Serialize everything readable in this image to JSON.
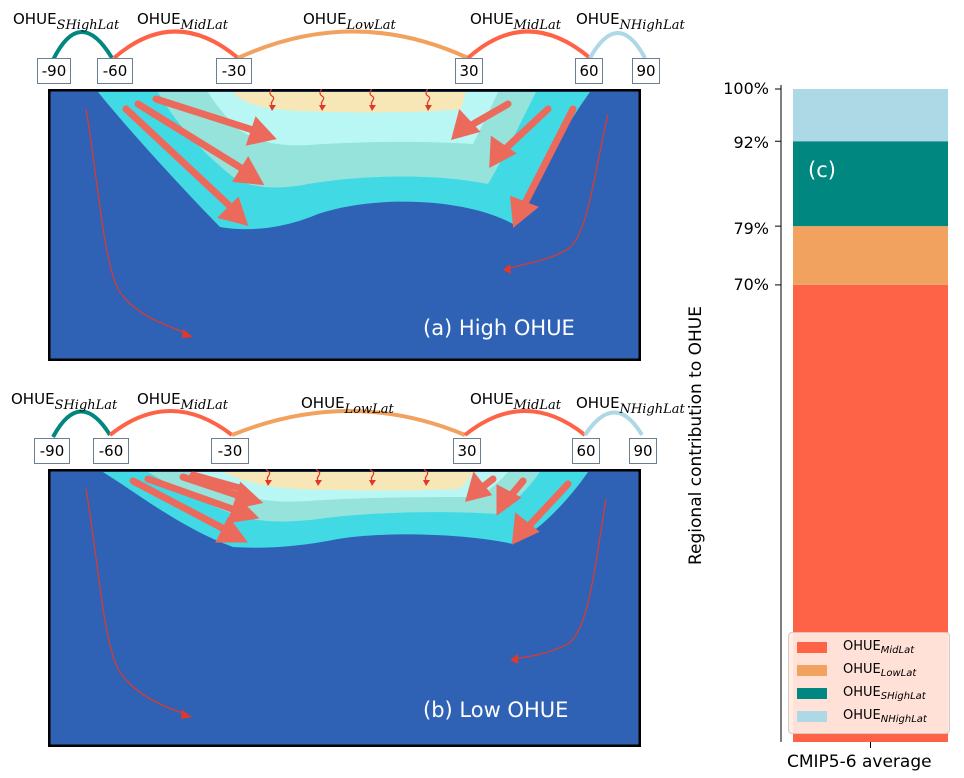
{
  "panel_a": {
    "arcs": {
      "shigh": {
        "base": "OHUE",
        "sub": "SHighLat"
      },
      "mid_left": {
        "base": "OHUE",
        "sub": "MidLat"
      },
      "low": {
        "base": "OHUE",
        "sub": "LowLat"
      },
      "mid_right": {
        "base": "OHUE",
        "sub": "MidLat"
      },
      "nhigh": {
        "base": "OHUE",
        "sub": "NHighLat"
      }
    },
    "latitudes": [
      "-90",
      "-60",
      "-30",
      "30",
      "60",
      "90"
    ],
    "label": "(a) High OHUE"
  },
  "panel_b": {
    "arcs": {
      "shigh": {
        "base": "OHUE",
        "sub": "SHighLat"
      },
      "mid_left": {
        "base": "OHUE",
        "sub": "MidLat"
      },
      "low": {
        "base": "OHUE",
        "sub": "LowLat"
      },
      "mid_right": {
        "base": "OHUE",
        "sub": "MidLat"
      },
      "nhigh": {
        "base": "OHUE",
        "sub": "NHighLat"
      }
    },
    "latitudes": [
      "-90",
      "-60",
      "-30",
      "30",
      "60",
      "90"
    ],
    "label": "(b) Low OHUE"
  },
  "colors": {
    "ocean": "#2f62b5",
    "layer_outer": "#41d9e4",
    "layer_mid": "#95e3db",
    "layer_inner": "#b9f7f5",
    "warm_pool": "#f8e7b6",
    "arrow": "#ec6a5c",
    "thin_arrow": "#e0392b",
    "midlat": "#ff6347",
    "lowlat": "#f0a25e",
    "shighlat": "#00877f",
    "nhighlat": "#add8e6"
  },
  "panel_c": {
    "label": "(c)",
    "ylabel": "Regional contribution to OHUE",
    "xlabel": "CMIP5-6 average",
    "ticks": [
      "100%",
      "92%",
      "79%",
      "70%"
    ],
    "legend": [
      {
        "base": "OHUE",
        "sub": "MidLat",
        "color": "#ff6347"
      },
      {
        "base": "OHUE",
        "sub": "LowLat",
        "color": "#f0a25e"
      },
      {
        "base": "OHUE",
        "sub": "SHighLat",
        "color": "#00877f"
      },
      {
        "base": "OHUE",
        "sub": "NHighLat",
        "color": "#add8e6"
      }
    ]
  },
  "chart_data": {
    "type": "bar",
    "stacked": true,
    "categories": [
      "CMIP5-6 average"
    ],
    "series": [
      {
        "name": "OHUE_MidLat",
        "values": [
          70
        ]
      },
      {
        "name": "OHUE_LowLat",
        "values": [
          9
        ]
      },
      {
        "name": "OHUE_SHighLat",
        "values": [
          13
        ]
      },
      {
        "name": "OHUE_NHighLat",
        "values": [
          8
        ]
      }
    ],
    "ylabel": "Regional contribution to OHUE",
    "xlabel": "CMIP5-6 average",
    "yticks": [
      "70%",
      "79%",
      "92%",
      "100%"
    ],
    "ylim": [
      0,
      100
    ],
    "legend": "bottom"
  }
}
